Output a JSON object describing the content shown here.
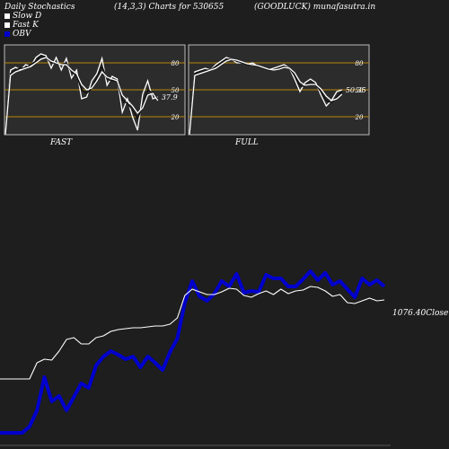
{
  "header": {
    "title": "Daily Stochastics",
    "params": "(14,3,3) Charts for 530655",
    "symbol": "(GOODLUCK) munafasutra.in"
  },
  "legend": [
    {
      "label": "Slow  D",
      "color": "#ffffff"
    },
    {
      "label": "Fast K",
      "color": "#ffffff"
    },
    {
      "label": "OBV",
      "color": "#0000cc"
    }
  ],
  "colors": {
    "background": "#1e1e1e",
    "panel": "#2c2c2c",
    "level_line": "#b8860b",
    "obv": "#0000cc",
    "price": "#ffffff"
  },
  "chart_data": [
    {
      "type": "line",
      "title": "FAST",
      "ylim": [
        0,
        100
      ],
      "levels": [
        80,
        50,
        20
      ],
      "tick_labels": [
        "80",
        "50",
        "20"
      ],
      "last_value_label": "37.9",
      "series": [
        {
          "values": [
            0,
            72,
            75,
            72,
            78,
            76,
            86,
            90,
            88,
            74,
            86,
            72,
            85,
            63,
            72,
            40,
            42,
            60,
            68,
            85,
            55,
            65,
            62,
            25,
            40,
            20,
            5,
            45,
            60,
            40,
            42
          ]
        },
        {
          "values": [
            0,
            68,
            72,
            74,
            74,
            78,
            82,
            88,
            86,
            80,
            80,
            78,
            80,
            70,
            66,
            50,
            46,
            52,
            64,
            76,
            62,
            60,
            60,
            38,
            35,
            28,
            18,
            32,
            50,
            46,
            40
          ]
        },
        {
          "values": [
            0,
            66,
            70,
            72,
            74,
            76,
            80,
            84,
            86,
            82,
            80,
            78,
            78,
            72,
            68,
            56,
            50,
            52,
            60,
            70,
            64,
            62,
            60,
            44,
            38,
            32,
            24,
            30,
            44,
            46,
            38
          ]
        }
      ]
    },
    {
      "type": "line",
      "title": "FULL",
      "ylim": [
        0,
        100
      ],
      "levels": [
        80,
        50,
        20
      ],
      "tick_labels": [
        "80",
        "50",
        "20"
      ],
      "last_value_label": "50.35",
      "series": [
        {
          "values": [
            0,
            70,
            72,
            74,
            72,
            78,
            82,
            86,
            84,
            80,
            80,
            78,
            80,
            76,
            74,
            72,
            74,
            76,
            78,
            74,
            62,
            48,
            58,
            62,
            58,
            44,
            32,
            38,
            48,
            50
          ]
        },
        {
          "values": [
            0,
            68,
            70,
            72,
            72,
            76,
            80,
            84,
            84,
            82,
            80,
            78,
            78,
            76,
            74,
            72,
            72,
            74,
            76,
            74,
            66,
            54,
            54,
            58,
            56,
            48,
            38,
            36,
            42,
            48
          ]
        },
        {
          "values": [
            0,
            66,
            68,
            70,
            72,
            74,
            78,
            82,
            84,
            83,
            81,
            79,
            78,
            77,
            75,
            73,
            72,
            73,
            75,
            74,
            69,
            59,
            55,
            56,
            56,
            51,
            43,
            38,
            40,
            45
          ]
        }
      ]
    },
    {
      "type": "line",
      "last_value_label": "1076.40Close",
      "series": [
        {
          "name": "OBV",
          "color": "#0000cc",
          "values": [
            -30,
            -30,
            -30,
            -30,
            -23,
            -5,
            32,
            5,
            11,
            -5,
            10,
            25,
            20,
            45,
            55,
            61,
            57,
            52,
            55,
            43,
            55,
            48,
            40,
            60,
            75,
            115,
            139,
            122,
            117,
            125,
            139,
            133,
            147,
            126,
            128,
            127,
            146,
            142,
            142,
            133,
            133,
            141,
            150,
            140,
            148,
            135,
            139,
            130,
            121,
            142,
            135,
            140,
            133
          ]
        },
        {
          "name": "Close",
          "color": "#ffffff",
          "values": [
            30,
            30,
            30,
            30,
            30,
            48,
            52,
            51,
            61,
            74,
            76,
            69,
            69,
            76,
            78,
            83,
            85,
            86,
            87,
            87,
            88,
            89,
            89,
            91,
            98,
            123,
            130,
            127,
            124,
            124,
            127,
            131,
            130,
            123,
            121,
            125,
            128,
            124,
            130,
            125,
            128,
            129,
            133,
            132,
            128,
            122,
            124,
            115,
            114,
            117,
            120,
            117,
            118
          ]
        }
      ]
    }
  ]
}
